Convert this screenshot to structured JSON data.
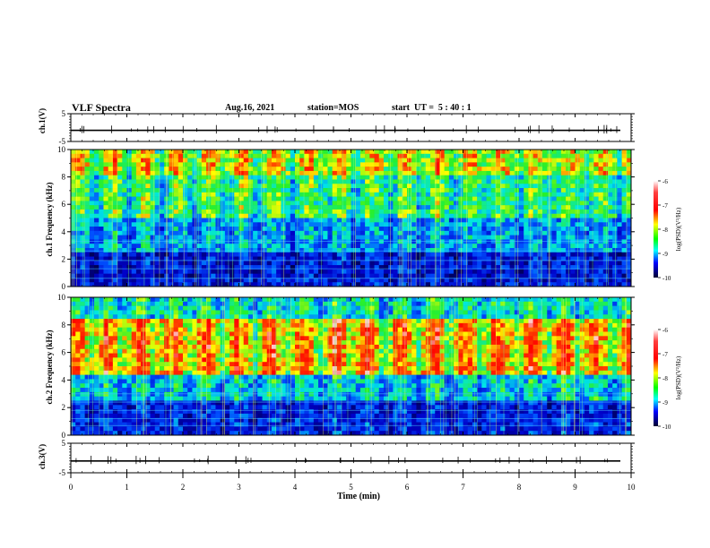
{
  "header": {
    "title": "VLF Spectra",
    "date": "Aug.16, 2021",
    "station": "station=MOS",
    "start_label": "start",
    "start_ut": "UT =  5 : 40 : 1"
  },
  "chart_data": [
    {
      "type": "line",
      "name": "ch.1 waveform",
      "ylabel": "ch.1(V)",
      "ylim": [
        -5,
        5
      ],
      "yticks": [
        "5",
        "-5"
      ],
      "xlim": [
        0,
        10
      ],
      "baseline": -1
    },
    {
      "type": "heatmap",
      "name": "ch.1 spectrogram",
      "ylabel": "ch.1 Frequency (kHz)",
      "ylim": [
        0,
        10
      ],
      "yticks": [
        "0",
        "2",
        "4",
        "6",
        "8",
        "10"
      ],
      "xlim": [
        0,
        10
      ],
      "colorbar": {
        "label": "log(PSD)(V²/Hz)",
        "range": [
          -10,
          -6
        ],
        "ticks": [
          "-6",
          "-7",
          "-8",
          "-9",
          "-10"
        ]
      }
    },
    {
      "type": "heatmap",
      "name": "ch.2 spectrogram",
      "ylabel": "ch.2 Frequency (kHz)",
      "ylim": [
        0,
        10
      ],
      "yticks": [
        "0",
        "2",
        "4",
        "6",
        "8",
        "10"
      ],
      "xlim": [
        0,
        10
      ],
      "colorbar": {
        "label": "log(PSD)(V²/Hz)",
        "range": [
          -10,
          -6
        ],
        "ticks": [
          "-6",
          "-7",
          "-8",
          "-9",
          "-10"
        ]
      }
    },
    {
      "type": "line",
      "name": "ch.3 waveform",
      "ylabel": "ch.3(V)",
      "ylim": [
        -5,
        5
      ],
      "yticks": [
        "5",
        "-5"
      ],
      "xlim": [
        0,
        10
      ],
      "baseline": -1,
      "xlabel": "Time  (min)",
      "xticks": [
        "0",
        "1",
        "2",
        "3",
        "4",
        "5",
        "6",
        "7",
        "8",
        "9",
        "10"
      ]
    }
  ],
  "colors": {
    "scale": [
      "#000060",
      "#0000ff",
      "#00ffff",
      "#00ff00",
      "#ffff00",
      "#ff0000",
      "#ffffff"
    ]
  }
}
